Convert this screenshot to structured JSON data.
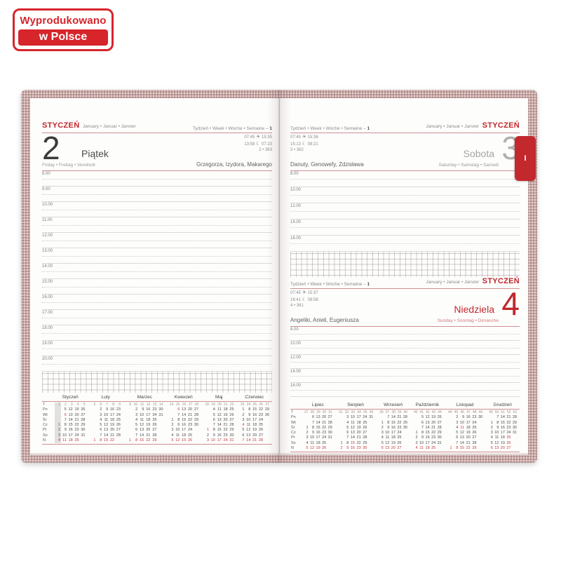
{
  "badge": {
    "line1": "Wyprodukowano",
    "line2": "w Polsce"
  },
  "tab_label": "I",
  "icons": {
    "sun": "☀",
    "moon": "☾"
  },
  "colors": {
    "accent_red": "#c0272d",
    "rule_red": "#cf8e90",
    "cover_mauve": "#c9a9a7",
    "gray_day": "#b3b0b0"
  },
  "common": {
    "month_pl": "STYCZEŃ",
    "month_intl": "January • Januar • Janvier",
    "week_label": "Tydzień • Week • Woche • Semaine – ",
    "week_number": "1"
  },
  "left_page": {
    "day_number": "2",
    "day_name": "Piątek",
    "day_intl": "Friday • Freitag • Vendredi",
    "sunrise": "07:45",
    "sunset": "15:35",
    "moonrise": "13:58",
    "moonset": "07:23",
    "day_of_year": "2 • 363",
    "names": "Grzegorza, Izydora, Makarego",
    "hours": [
      "8.00",
      "9.00",
      "10.00",
      "11.00",
      "12.00",
      "13.00",
      "14.00",
      "15.00",
      "16.00",
      "17.00",
      "18.00",
      "19.00",
      "20.00"
    ]
  },
  "right_page": {
    "saturday": {
      "day_number": "3",
      "day_name": "Sobota",
      "day_intl": "Saturday • Samstag • Samedi",
      "sunrise": "07:45",
      "sunset": "15:36",
      "moonrise": "15:13",
      "moonset": "08:21",
      "day_of_year": "3 • 362",
      "names": "Danuty, Genowefy, Zdzisława",
      "hours": [
        "8.00",
        "10.00",
        "12.00",
        "14.00",
        "16.00"
      ]
    },
    "sunday": {
      "day_number": "4",
      "day_name": "Niedziela",
      "day_intl": "Sunday • Sonntag • Dimanche",
      "sunrise": "07:45",
      "sunset": "15:37",
      "moonrise": "16:41",
      "moonset": "08:58",
      "day_of_year": "4 • 361",
      "names": "Angeliki, Anieli, Eugeniusza",
      "hours": [
        "8.00",
        "10.00",
        "12.00",
        "14.00",
        "16.00"
      ]
    }
  },
  "mini_calendars": {
    "corner_label": "T",
    "day_labels": [
      "Pn",
      "Wt",
      "Śr",
      "Cz",
      "Pt",
      "So",
      "N"
    ],
    "left_months": [
      {
        "name": "Styczeń",
        "weeks": [
          "1",
          "2",
          "3",
          "4",
          "5"
        ],
        "hl_col": 0,
        "red_days": [
          1,
          6
        ],
        "days": [
          [
            "",
            "5",
            "12",
            "19",
            "26"
          ],
          [
            "",
            "6",
            "13",
            "20",
            "27"
          ],
          [
            "",
            "7",
            "14",
            "21",
            "28"
          ],
          [
            "1",
            "8",
            "15",
            "22",
            "29"
          ],
          [
            "2",
            "9",
            "16",
            "23",
            "30"
          ],
          [
            "3",
            "10",
            "17",
            "24",
            "31"
          ],
          [
            "4",
            "11",
            "18",
            "25",
            ""
          ]
        ]
      },
      {
        "name": "Luty",
        "weeks": [
          "5",
          "6",
          "7",
          "8",
          "9"
        ],
        "red_days": [],
        "days": [
          [
            "",
            "2",
            "9",
            "16",
            "23"
          ],
          [
            "",
            "3",
            "10",
            "17",
            "24"
          ],
          [
            "",
            "4",
            "11",
            "18",
            "25"
          ],
          [
            "",
            "5",
            "12",
            "19",
            "26"
          ],
          [
            "",
            "6",
            "13",
            "20",
            "27"
          ],
          [
            "",
            "7",
            "14",
            "21",
            "28"
          ],
          [
            "1",
            "8",
            "15",
            "22",
            ""
          ]
        ]
      },
      {
        "name": "Marzec",
        "weeks": [
          "9",
          "10",
          "11",
          "12",
          "13",
          "14"
        ],
        "red_days": [],
        "days": [
          [
            "",
            "2",
            "9",
            "16",
            "23",
            "30"
          ],
          [
            "",
            "3",
            "10",
            "17",
            "24",
            "31"
          ],
          [
            "",
            "4",
            "11",
            "18",
            "25",
            ""
          ],
          [
            "",
            "5",
            "12",
            "19",
            "26",
            ""
          ],
          [
            "",
            "6",
            "13",
            "20",
            "27",
            ""
          ],
          [
            "",
            "7",
            "14",
            "21",
            "28",
            ""
          ],
          [
            "1",
            "8",
            "15",
            "22",
            "29",
            ""
          ]
        ]
      },
      {
        "name": "Kwiecień",
        "weeks": [
          "14",
          "15",
          "16",
          "17",
          "18"
        ],
        "red_days": [
          6
        ],
        "days": [
          [
            "",
            "6",
            "13",
            "20",
            "27"
          ],
          [
            "",
            "7",
            "14",
            "21",
            "28"
          ],
          [
            "1",
            "8",
            "15",
            "22",
            "29"
          ],
          [
            "2",
            "9",
            "16",
            "23",
            "30"
          ],
          [
            "3",
            "10",
            "17",
            "24",
            ""
          ],
          [
            "4",
            "11",
            "18",
            "25",
            ""
          ],
          [
            "5",
            "12",
            "19",
            "26",
            ""
          ]
        ]
      },
      {
        "name": "Maj",
        "weeks": [
          "18",
          "19",
          "20",
          "21",
          "22"
        ],
        "red_days": [
          1
        ],
        "days": [
          [
            "",
            "4",
            "11",
            "18",
            "25"
          ],
          [
            "",
            "5",
            "12",
            "19",
            "26"
          ],
          [
            "",
            "6",
            "13",
            "20",
            "27"
          ],
          [
            "",
            "7",
            "14",
            "21",
            "28"
          ],
          [
            "1",
            "8",
            "15",
            "22",
            "29"
          ],
          [
            "2",
            "9",
            "16",
            "23",
            "30"
          ],
          [
            "3",
            "10",
            "17",
            "24",
            "31"
          ]
        ]
      },
      {
        "name": "Czerwiec",
        "weeks": [
          "23",
          "24",
          "25",
          "26",
          "27"
        ],
        "red_days": [
          4
        ],
        "days": [
          [
            "1",
            "8",
            "15",
            "22",
            "29"
          ],
          [
            "2",
            "9",
            "16",
            "23",
            "30"
          ],
          [
            "3",
            "10",
            "17",
            "24",
            ""
          ],
          [
            "4",
            "11",
            "18",
            "25",
            ""
          ],
          [
            "5",
            "12",
            "19",
            "26",
            ""
          ],
          [
            "6",
            "13",
            "20",
            "27",
            ""
          ],
          [
            "7",
            "14",
            "21",
            "28",
            ""
          ]
        ]
      }
    ],
    "right_months": [
      {
        "name": "Lipiec",
        "weeks": [
          "27",
          "28",
          "29",
          "30",
          "31"
        ],
        "red_days": [],
        "days": [
          [
            "",
            "6",
            "13",
            "20",
            "27"
          ],
          [
            "",
            "7",
            "14",
            "21",
            "28"
          ],
          [
            "1",
            "8",
            "15",
            "22",
            "29"
          ],
          [
            "2",
            "9",
            "16",
            "23",
            "30"
          ],
          [
            "3",
            "10",
            "17",
            "24",
            "31"
          ],
          [
            "4",
            "11",
            "18",
            "25",
            ""
          ],
          [
            "5",
            "12",
            "19",
            "26",
            ""
          ]
        ]
      },
      {
        "name": "Sierpień",
        "weeks": [
          "31",
          "32",
          "33",
          "34",
          "35",
          "36"
        ],
        "red_days": [
          15
        ],
        "days": [
          [
            "",
            "3",
            "10",
            "17",
            "24",
            "31"
          ],
          [
            "",
            "4",
            "11",
            "18",
            "25",
            ""
          ],
          [
            "",
            "5",
            "12",
            "19",
            "26",
            ""
          ],
          [
            "",
            "6",
            "13",
            "20",
            "27",
            ""
          ],
          [
            "",
            "7",
            "14",
            "21",
            "28",
            ""
          ],
          [
            "1",
            "8",
            "15",
            "22",
            "29",
            ""
          ],
          [
            "2",
            "9",
            "16",
            "23",
            "30",
            ""
          ]
        ]
      },
      {
        "name": "Wrzesień",
        "weeks": [
          "36",
          "37",
          "38",
          "39",
          "40"
        ],
        "red_days": [],
        "days": [
          [
            "",
            "7",
            "14",
            "21",
            "28"
          ],
          [
            "1",
            "8",
            "15",
            "22",
            "29"
          ],
          [
            "2",
            "9",
            "16",
            "23",
            "30"
          ],
          [
            "3",
            "10",
            "17",
            "24",
            ""
          ],
          [
            "4",
            "11",
            "18",
            "25",
            ""
          ],
          [
            "5",
            "12",
            "19",
            "26",
            ""
          ],
          [
            "6",
            "13",
            "20",
            "27",
            ""
          ]
        ]
      },
      {
        "name": "Październik",
        "weeks": [
          "40",
          "41",
          "42",
          "43",
          "44"
        ],
        "red_days": [],
        "days": [
          [
            "",
            "5",
            "12",
            "19",
            "26"
          ],
          [
            "",
            "6",
            "13",
            "20",
            "27"
          ],
          [
            "",
            "7",
            "14",
            "21",
            "28"
          ],
          [
            "1",
            "8",
            "15",
            "22",
            "29"
          ],
          [
            "2",
            "9",
            "16",
            "23",
            "30"
          ],
          [
            "3",
            "10",
            "17",
            "24",
            "31"
          ],
          [
            "4",
            "11",
            "18",
            "25",
            ""
          ]
        ]
      },
      {
        "name": "Listopad",
        "weeks": [
          "44",
          "45",
          "46",
          "47",
          "48",
          "49"
        ],
        "red_days": [
          11
        ],
        "days": [
          [
            "",
            "2",
            "9",
            "16",
            "23",
            "30"
          ],
          [
            "",
            "3",
            "10",
            "17",
            "24",
            ""
          ],
          [
            "",
            "4",
            "11",
            "18",
            "25",
            ""
          ],
          [
            "",
            "5",
            "12",
            "19",
            "26",
            ""
          ],
          [
            "",
            "6",
            "13",
            "20",
            "27",
            ""
          ],
          [
            "",
            "7",
            "14",
            "21",
            "28",
            ""
          ],
          [
            "1",
            "8",
            "15",
            "22",
            "29",
            ""
          ]
        ]
      },
      {
        "name": "Grudzień",
        "weeks": [
          "49",
          "50",
          "51",
          "52",
          "53"
        ],
        "red_days": [
          25,
          26
        ],
        "days": [
          [
            "",
            "7",
            "14",
            "21",
            "28"
          ],
          [
            "1",
            "8",
            "15",
            "22",
            "29"
          ],
          [
            "2",
            "9",
            "16",
            "23",
            "30"
          ],
          [
            "3",
            "10",
            "17",
            "24",
            "31"
          ],
          [
            "4",
            "11",
            "18",
            "25",
            ""
          ],
          [
            "5",
            "12",
            "19",
            "26",
            ""
          ],
          [
            "6",
            "13",
            "20",
            "27",
            ""
          ]
        ]
      }
    ]
  }
}
